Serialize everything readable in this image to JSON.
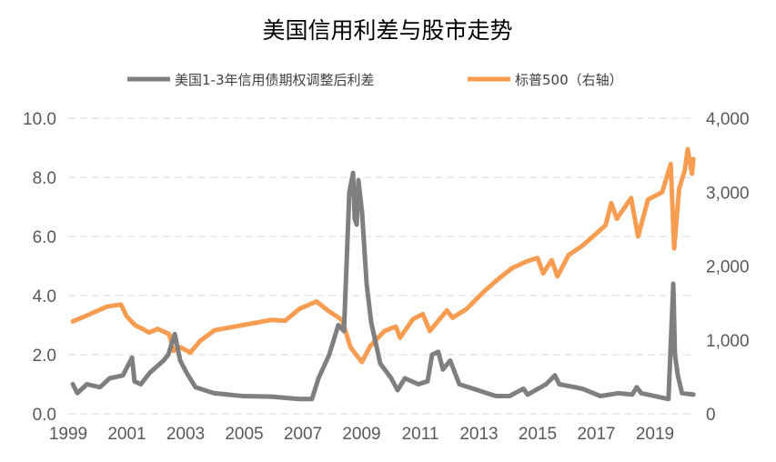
{
  "chart_data": {
    "type": "line",
    "title": "美国信用利差与股市走势",
    "xlabel": "",
    "ylabel": "",
    "x_tick_labels": [
      "1999",
      "2001",
      "2003",
      "2005",
      "2007",
      "2009",
      "2011",
      "2013",
      "2015",
      "2017",
      "2019"
    ],
    "y_left": {
      "range": [
        0,
        10
      ],
      "tick_labels": [
        "0.0",
        "2.0",
        "4.0",
        "6.0",
        "8.0",
        "10.0"
      ]
    },
    "y_right": {
      "range": [
        0,
        4000
      ],
      "tick_labels": [
        "0",
        "1,000",
        "2,000",
        "3,000",
        "4,000"
      ]
    },
    "x_range": [
      1999,
      2020.9
    ],
    "grid": true,
    "legend_position": "top",
    "series": [
      {
        "name": "美国1-3年信用债期权调整后利差",
        "axis": "left",
        "color": "#7f7f7f",
        "points": [
          [
            1999.0,
            1.0
          ],
          [
            1999.16,
            0.7
          ],
          [
            1999.5,
            1.0
          ],
          [
            1999.96,
            0.9
          ],
          [
            2000.3,
            1.2
          ],
          [
            2000.77,
            1.3
          ],
          [
            2000.93,
            1.6
          ],
          [
            2001.09,
            1.9
          ],
          [
            2001.18,
            1.1
          ],
          [
            2001.4,
            1.0
          ],
          [
            2001.73,
            1.4
          ],
          [
            2002.2,
            1.8
          ],
          [
            2002.37,
            2.0
          ],
          [
            2002.6,
            2.7
          ],
          [
            2002.79,
            1.8
          ],
          [
            2003.01,
            1.4
          ],
          [
            2003.33,
            0.9
          ],
          [
            2003.97,
            0.7
          ],
          [
            2005.0,
            0.6
          ],
          [
            2006.0,
            0.58
          ],
          [
            2007.0,
            0.5
          ],
          [
            2007.44,
            0.5
          ],
          [
            2007.67,
            1.2
          ],
          [
            2008.05,
            2.0
          ],
          [
            2008.37,
            3.0
          ],
          [
            2008.57,
            2.8
          ],
          [
            2008.63,
            4.3
          ],
          [
            2008.76,
            7.5
          ],
          [
            2008.89,
            8.15
          ],
          [
            2008.95,
            6.6
          ],
          [
            2009.02,
            6.4
          ],
          [
            2009.08,
            7.9
          ],
          [
            2009.21,
            6.8
          ],
          [
            2009.37,
            4.4
          ],
          [
            2009.53,
            3.1
          ],
          [
            2009.85,
            1.7
          ],
          [
            2010.24,
            1.2
          ],
          [
            2010.46,
            0.8
          ],
          [
            2010.72,
            1.2
          ],
          [
            2011.2,
            1.0
          ],
          [
            2011.52,
            1.1
          ],
          [
            2011.68,
            2.0
          ],
          [
            2011.9,
            2.1
          ],
          [
            2012.06,
            1.5
          ],
          [
            2012.32,
            1.8
          ],
          [
            2012.64,
            1.0
          ],
          [
            2013.29,
            0.8
          ],
          [
            2013.93,
            0.6
          ],
          [
            2014.41,
            0.6
          ],
          [
            2014.9,
            0.85
          ],
          [
            2015.05,
            0.65
          ],
          [
            2015.7,
            1.0
          ],
          [
            2016.01,
            1.3
          ],
          [
            2016.17,
            1.0
          ],
          [
            2016.98,
            0.85
          ],
          [
            2017.62,
            0.6
          ],
          [
            2018.26,
            0.7
          ],
          [
            2018.74,
            0.65
          ],
          [
            2018.9,
            0.9
          ],
          [
            2019.06,
            0.7
          ],
          [
            2020.02,
            0.5
          ],
          [
            2020.19,
            4.4
          ],
          [
            2020.25,
            2.0
          ],
          [
            2020.35,
            1.3
          ],
          [
            2020.5,
            0.7
          ],
          [
            2020.9,
            0.65
          ]
        ]
      },
      {
        "name": "标普500（右轴）",
        "axis": "right",
        "color": "#f79d52",
        "points": [
          [
            1999.0,
            1250
          ],
          [
            1999.5,
            1330
          ],
          [
            2000.2,
            1450
          ],
          [
            2000.7,
            1480
          ],
          [
            2000.9,
            1320
          ],
          [
            2001.2,
            1200
          ],
          [
            2001.7,
            1100
          ],
          [
            2002.0,
            1150
          ],
          [
            2002.4,
            1080
          ],
          [
            2002.55,
            850
          ],
          [
            2002.8,
            900
          ],
          [
            2003.15,
            830
          ],
          [
            2003.5,
            990
          ],
          [
            2004.0,
            1130
          ],
          [
            2005.0,
            1200
          ],
          [
            2006.0,
            1270
          ],
          [
            2006.5,
            1260
          ],
          [
            2007.0,
            1420
          ],
          [
            2007.6,
            1520
          ],
          [
            2008.0,
            1400
          ],
          [
            2008.5,
            1270
          ],
          [
            2008.8,
            900
          ],
          [
            2009.2,
            700
          ],
          [
            2009.5,
            920
          ],
          [
            2010.0,
            1120
          ],
          [
            2010.4,
            1180
          ],
          [
            2010.55,
            1030
          ],
          [
            2011.0,
            1280
          ],
          [
            2011.35,
            1350
          ],
          [
            2011.6,
            1120
          ],
          [
            2012.2,
            1400
          ],
          [
            2012.4,
            1300
          ],
          [
            2012.9,
            1420
          ],
          [
            2013.5,
            1650
          ],
          [
            2014.0,
            1820
          ],
          [
            2014.5,
            1970
          ],
          [
            2015.0,
            2060
          ],
          [
            2015.4,
            2110
          ],
          [
            2015.6,
            1900
          ],
          [
            2015.9,
            2080
          ],
          [
            2016.1,
            1860
          ],
          [
            2016.5,
            2150
          ],
          [
            2017.0,
            2280
          ],
          [
            2017.8,
            2550
          ],
          [
            2018.0,
            2850
          ],
          [
            2018.2,
            2640
          ],
          [
            2018.7,
            2920
          ],
          [
            2018.95,
            2400
          ],
          [
            2019.3,
            2900
          ],
          [
            2019.8,
            3000
          ],
          [
            2020.1,
            3380
          ],
          [
            2020.22,
            2240
          ],
          [
            2020.4,
            3050
          ],
          [
            2020.6,
            3300
          ],
          [
            2020.7,
            3580
          ],
          [
            2020.85,
            3250
          ],
          [
            2020.9,
            3450
          ]
        ]
      }
    ]
  }
}
